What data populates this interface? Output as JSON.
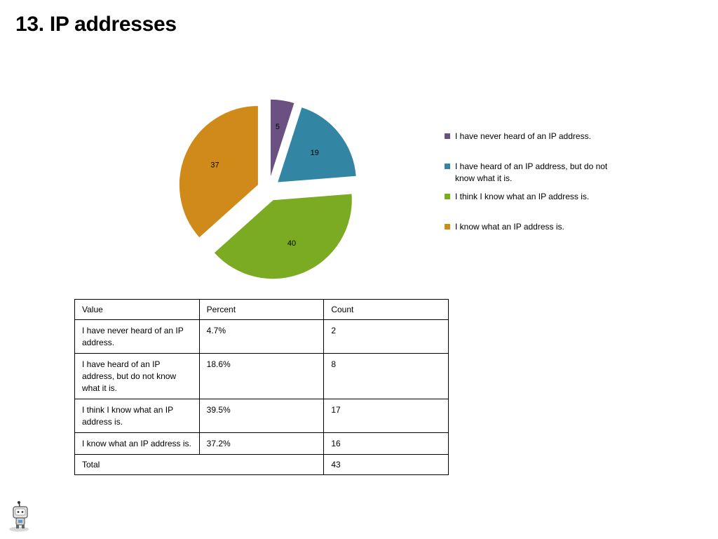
{
  "slide": {
    "title": "13. IP addresses"
  },
  "chart_data": {
    "type": "pie",
    "title": "",
    "exploded": true,
    "legend_position": "right",
    "categories": [
      "I have never heard of an IP address.",
      "I have heard of an IP address, but do not know what it is.",
      "I think I know what an IP address is.",
      "I know what an IP address is."
    ],
    "values": [
      5,
      19,
      40,
      37
    ],
    "data_labels": [
      "5",
      "19",
      "40",
      "37"
    ],
    "colors": [
      "#6a5182",
      "#3286a4",
      "#7aab22",
      "#d08a1a"
    ]
  },
  "table": {
    "headers": [
      "Value",
      "Percent",
      "Count"
    ],
    "rows": [
      [
        "I have never heard of an IP address.",
        "4.7%",
        "2"
      ],
      [
        "I have heard of an IP address, but do not know what it is.",
        "18.6%",
        "8"
      ],
      [
        "I think I know what an IP address is.",
        "39.5%",
        "17"
      ],
      [
        "I know what an IP address is.",
        "37.2%",
        "16"
      ]
    ],
    "total_label": "Total",
    "total_count": "43"
  },
  "logo": {
    "icon": "robot-mascot-icon"
  }
}
